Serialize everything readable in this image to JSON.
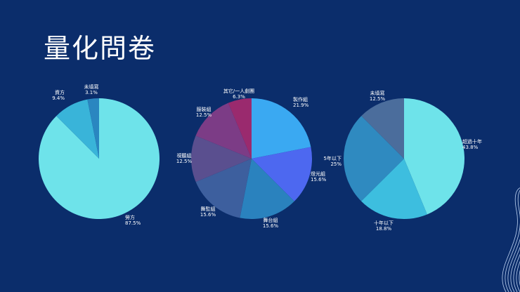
{
  "slide": {
    "title": "量化問卷"
  },
  "chart_data": [
    {
      "type": "pie",
      "slices": [
        {
          "name": "勞方",
          "value": 87.5,
          "label": "87.5%",
          "color": "#6ee3ea"
        },
        {
          "name": "資方",
          "value": 9.4,
          "label": "9.4%",
          "color": "#39b4d9"
        },
        {
          "name": "未填寫",
          "value": 3.1,
          "label": "3.1%",
          "color": "#2a86c0"
        }
      ]
    },
    {
      "type": "pie",
      "slices": [
        {
          "name": "製作組",
          "value": 21.9,
          "label": "21.9%",
          "color": "#3aa9f2"
        },
        {
          "name": "燈光組",
          "value": 15.6,
          "label": "15.6%",
          "color": "#4d68f0"
        },
        {
          "name": "舞台組",
          "value": 15.6,
          "label": "15.6%",
          "color": "#2a82be"
        },
        {
          "name": "舞監組",
          "value": 15.6,
          "label": "15.6%",
          "color": "#3d5f9e"
        },
        {
          "name": "視聽組",
          "value": 12.5,
          "label": "12.5%",
          "color": "#5a4f8f"
        },
        {
          "name": "服裝組",
          "value": 12.5,
          "label": "12.5%",
          "color": "#7c3c86"
        },
        {
          "name": "其它/一人劇團",
          "value": 6.3,
          "label": "6.3%",
          "color": "#9a2a6e"
        }
      ]
    },
    {
      "type": "pie",
      "slices": [
        {
          "name": "超過十年",
          "value": 43.8,
          "label": "43.8%",
          "color": "#6ee3ea"
        },
        {
          "name": "十年以下",
          "value": 18.8,
          "label": "18.8%",
          "color": "#3dbedf"
        },
        {
          "name": "5年以下",
          "value": 25,
          "label": "25%",
          "color": "#2f8ac0"
        },
        {
          "name": "未填寫",
          "value": 12.5,
          "label": "12.5%",
          "color": "#4b6d9c"
        }
      ]
    }
  ]
}
